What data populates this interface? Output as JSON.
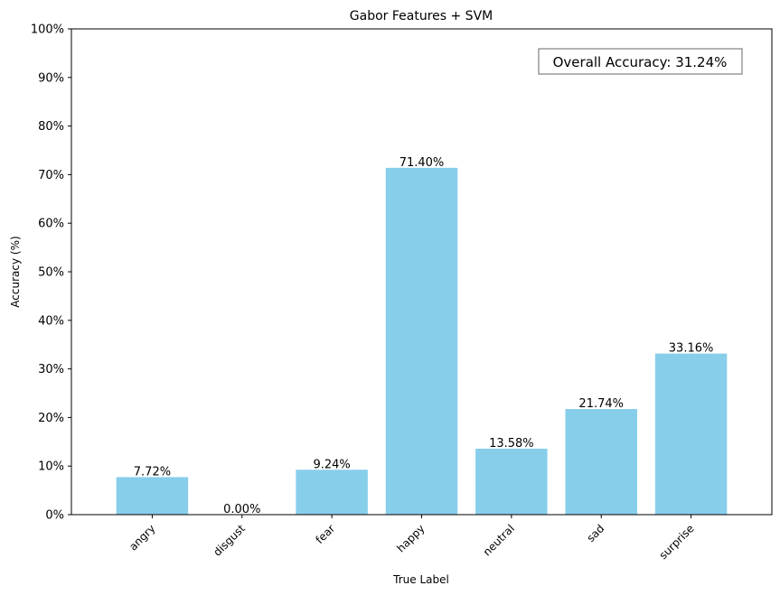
{
  "chart_data": {
    "type": "bar",
    "title": "Gabor Features + SVM",
    "xlabel": "True Label",
    "ylabel": "Accuracy (%)",
    "categories": [
      "angry",
      "disgust",
      "fear",
      "happy",
      "neutral",
      "sad",
      "surprise"
    ],
    "values": [
      7.72,
      0.0,
      9.24,
      71.4,
      13.58,
      21.74,
      33.16
    ],
    "value_labels": [
      "7.72%",
      "0.00%",
      "9.24%",
      "71.40%",
      "13.58%",
      "21.74%",
      "33.16%"
    ],
    "ylim": [
      0,
      100
    ],
    "yticks": [
      0,
      10,
      20,
      30,
      40,
      50,
      60,
      70,
      80,
      90,
      100
    ],
    "ytick_labels": [
      "0%",
      "10%",
      "20%",
      "30%",
      "40%",
      "50%",
      "60%",
      "70%",
      "80%",
      "90%",
      "100%"
    ],
    "annotation": "Overall Accuracy: 31.24%",
    "annotation_position": "top-right",
    "grid": false,
    "bar_color": "#87ceeb"
  }
}
